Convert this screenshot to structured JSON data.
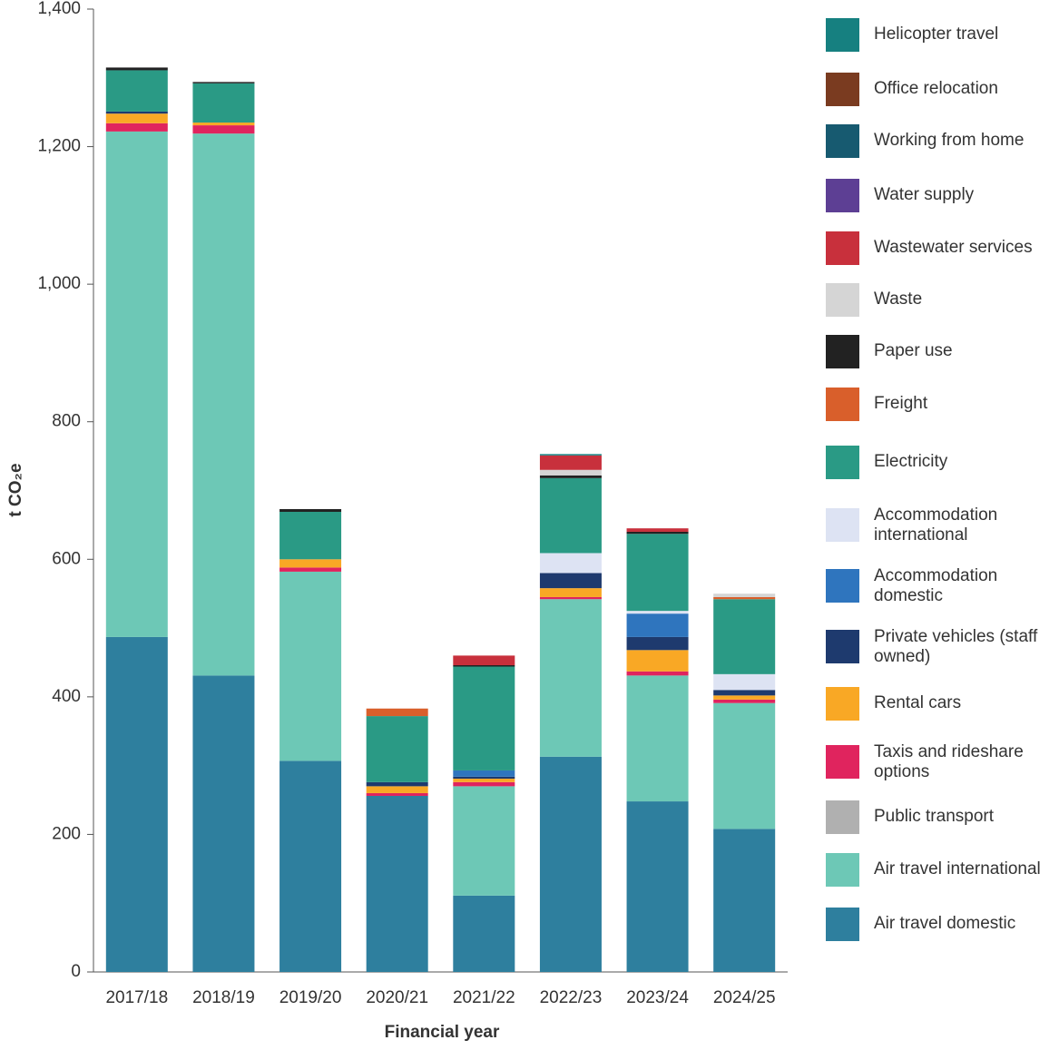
{
  "chart_data": {
    "type": "bar",
    "stacked": true,
    "x_label": "Financial year",
    "y_label": "t CO₂e",
    "categories": [
      "2017/18",
      "2018/19",
      "2019/20",
      "2020/21",
      "2021/22",
      "2022/23",
      "2023/24",
      "2024/25"
    ],
    "ylim": [
      0,
      1400
    ],
    "yticks": [
      0,
      200,
      400,
      600,
      800,
      {
        "value": 1000,
        "label": "1,000"
      },
      {
        "value": 1200,
        "label": "1,200"
      },
      {
        "value": 1400,
        "label": "1,400"
      }
    ],
    "grid": false,
    "legend": "right",
    "series": [
      {
        "name": "Air travel domestic",
        "color": "#2e7f9e",
        "values": [
          487,
          431,
          307,
          256,
          111,
          313,
          248,
          208
        ]
      },
      {
        "name": "Air travel international",
        "color": "#6dc8b6",
        "values": [
          735,
          788,
          275,
          0,
          159,
          229,
          183,
          183
        ]
      },
      {
        "name": "Public transport",
        "color": "#b0b0b0",
        "values": [
          0,
          0,
          0,
          0,
          0,
          0,
          0,
          0
        ]
      },
      {
        "name": "Taxis and rideshare options",
        "color": "#e0245e",
        "values": [
          12,
          12,
          6,
          4,
          6,
          3,
          6,
          5
        ]
      },
      {
        "name": "Rental cars",
        "color": "#f9a825",
        "values": [
          14,
          4,
          12,
          10,
          5,
          13,
          31,
          6
        ]
      },
      {
        "name": "Private vehicles (staff owned)",
        "color": "#1e3a6e",
        "values": [
          3,
          0,
          0,
          6,
          3,
          22,
          19,
          8
        ]
      },
      {
        "name": "Accommodation domestic",
        "color": "#2f75be",
        "values": [
          0,
          0,
          0,
          0,
          9,
          0,
          34,
          0
        ]
      },
      {
        "name": "Accommodation international",
        "color": "#dde3f3",
        "values": [
          0,
          0,
          0,
          0,
          0,
          29,
          4,
          23
        ]
      },
      {
        "name": "Electricity",
        "color": "#2a9a85",
        "values": [
          60,
          57,
          69,
          96,
          151,
          109,
          112,
          109
        ]
      },
      {
        "name": "Freight",
        "color": "#d95f2b",
        "values": [
          0,
          0,
          0,
          11,
          0,
          0,
          0,
          3
        ]
      },
      {
        "name": "Paper use",
        "color": "#222222",
        "values": [
          4,
          2,
          4,
          0,
          2,
          4,
          3,
          0
        ]
      },
      {
        "name": "Waste",
        "color": "#d5d5d5",
        "values": [
          0,
          0,
          0,
          0,
          0,
          8,
          0,
          5
        ]
      },
      {
        "name": "Wastewater services",
        "color": "#c8303c",
        "values": [
          0,
          0,
          0,
          0,
          14,
          21,
          5,
          0
        ]
      },
      {
        "name": "Water supply",
        "color": "#5d3f94",
        "values": [
          0,
          0,
          0,
          0,
          0,
          0,
          0,
          0
        ]
      },
      {
        "name": "Working from home",
        "color": "#175a70",
        "values": [
          0,
          0,
          0,
          0,
          0,
          0,
          0,
          0
        ]
      },
      {
        "name": "Office relocation",
        "color": "#7a3b20",
        "values": [
          0,
          0,
          0,
          0,
          0,
          0,
          0,
          0
        ]
      },
      {
        "name": "Helicopter travel",
        "color": "#168080",
        "values": [
          0,
          0,
          0,
          0,
          0,
          2,
          0,
          0
        ]
      }
    ]
  }
}
